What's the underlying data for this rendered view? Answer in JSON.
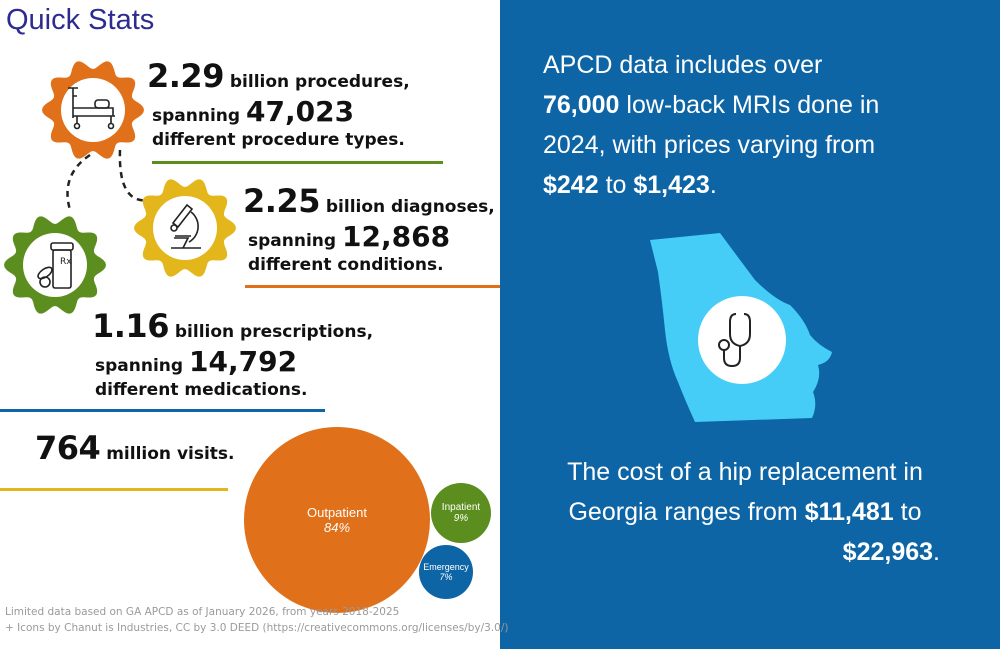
{
  "title": "Quick Stats",
  "stats": [
    {
      "number": "2.29",
      "unit": "billion procedures,",
      "spanning": "spanning",
      "count": "47,023",
      "desc": "different procedure types.",
      "color": "#5c8e1f",
      "icon": "hospital-bed-icon",
      "gear_color": "#e07019"
    },
    {
      "number": "2.25",
      "unit": "billion diagnoses,",
      "spanning": "spanning",
      "count": "12,868",
      "desc": "different conditions.",
      "color": "#e07019",
      "icon": "microscope-icon",
      "gear_color": "#e3b71c"
    },
    {
      "number": "1.16",
      "unit": "billion prescriptions,",
      "spanning": "spanning",
      "count": "14,792",
      "desc": "different medications.",
      "color": "#0e65a6",
      "icon": "prescription-bottle-icon",
      "gear_color": "#5c8e1f"
    }
  ],
  "visits": {
    "number": "764",
    "unit": "million visits.",
    "color": "#e3b71c"
  },
  "chart_data": {
    "type": "bubble",
    "categories": [
      "Outpatient",
      "Inpatient",
      "Emergency"
    ],
    "values": [
      84,
      9,
      7
    ],
    "labels": [
      "84%",
      "9%",
      "7%"
    ],
    "colors": [
      "#e07019",
      "#5c8e1f",
      "#0e65a6"
    ]
  },
  "right": {
    "mri": {
      "l1": "APCD data includes over",
      "l2_bold": "76,000",
      "l2": " low-back MRIs done in",
      "l3": "2024, with prices varying from",
      "l4_b1": "$242",
      "l4_mid": " to ",
      "l4_b2": "$1,423",
      "l4_end": "."
    },
    "hip": {
      "l1": "The cost of a hip replacement in",
      "l2": "Georgia ranges from ",
      "l2_bold": "$11,481",
      "l2_end": " to",
      "l3_bold": "$22,963",
      "l3_end": "."
    },
    "map_icon": "stethoscope-icon",
    "bg": "#0e65a6",
    "map_color": "#45cdf7"
  },
  "footer": {
    "l1": "Limited data based on GA APCD as of January 2026, from years 2018-2025",
    "l2": "+ Icons by Chanut is Industries, CC by 3.0 DEED (",
    "link": "https://creativecommons.org/licenses/by/3.0/",
    "l2_end": ")"
  }
}
